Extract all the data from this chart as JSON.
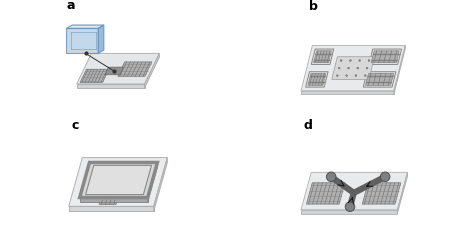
{
  "figure_bg": "#ffffff",
  "panel_labels": [
    "a",
    "b",
    "c",
    "d"
  ],
  "label_fontsize": 9,
  "label_fontweight": "bold",
  "plate_top": "#e8eaec",
  "plate_side": "#c8cacc",
  "plate_front": "#d8dadc",
  "plate_edge": "#aaaaaa",
  "idt_face": "#b0b0b0",
  "idt_line": "#777777",
  "block_face": "#909090",
  "blue_face": "#b8d0e8",
  "blue_top": "#d0e4f4",
  "blue_side": "#8ab0cc",
  "blue_edge": "#6090b8",
  "chip_top": "#c0c0c0",
  "chip_side": "#909090",
  "chip_front": "#a8a8a8",
  "chip_light": "#d8d8d8",
  "channel_color": "#606060",
  "reservoir_color": "#808080",
  "dot_color": "#333333"
}
